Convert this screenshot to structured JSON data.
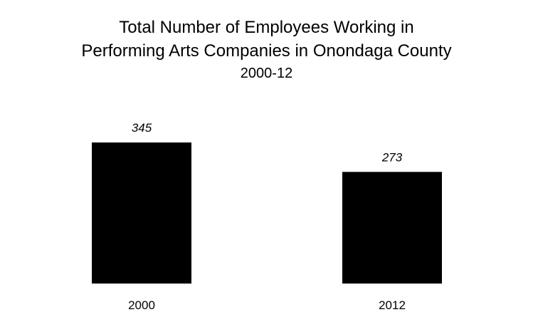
{
  "chart_data": {
    "type": "bar",
    "title_lines": [
      "Total Number of Employees Working in",
      "Performing Arts Companies in Onondaga County"
    ],
    "subtitle": "2000-12",
    "categories": [
      "2000",
      "2012"
    ],
    "values": [
      345,
      273
    ],
    "data_labels": [
      "345",
      "273"
    ],
    "xlabel": "",
    "ylabel": "",
    "ylim": [
      0,
      400
    ],
    "grid": false,
    "legend": "none",
    "bar_color": "#000000"
  }
}
